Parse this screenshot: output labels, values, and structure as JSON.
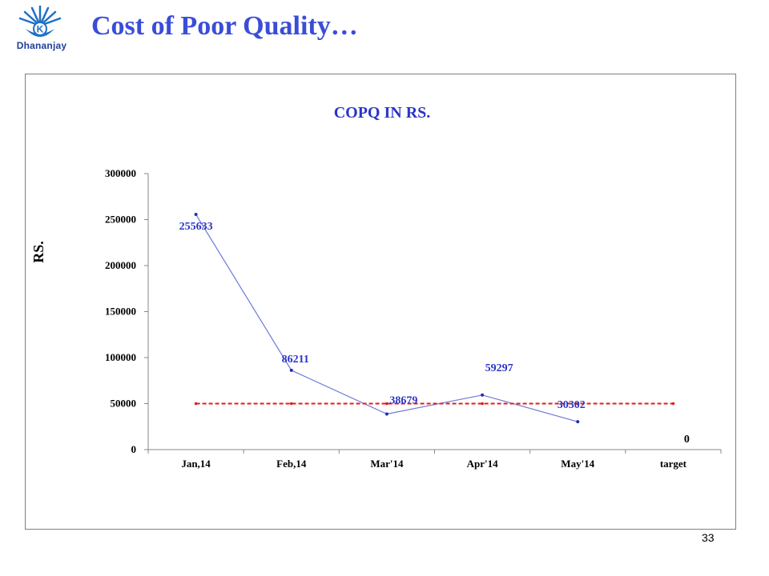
{
  "header": {
    "title": "Cost of Poor Quality…",
    "logo_text": "Dhananjay",
    "logo_letter": "K"
  },
  "footer": {
    "page_number": "33"
  },
  "chart_data": {
    "type": "line",
    "title": "COPQ IN RS.",
    "xlabel": "",
    "ylabel": "RS.",
    "categories": [
      "Jan,14",
      "Feb,14",
      "Mar'14",
      "Apr'14",
      "May'14",
      "target"
    ],
    "ylim": [
      0,
      300000
    ],
    "yticks": [
      0,
      50000,
      100000,
      150000,
      200000,
      250000,
      300000
    ],
    "grid": false,
    "series": [
      {
        "values": [
          255633,
          86211,
          38679,
          59297,
          30302,
          null
        ],
        "data_labels": [
          "255633",
          "86211",
          "38679",
          "59297",
          "30302",
          "0"
        ],
        "color": "#6c7bd8",
        "label_color": "#2b35c8"
      },
      {
        "values": [
          50000,
          50000,
          50000,
          50000,
          50000,
          50000
        ],
        "color": "#e01b1b",
        "line_style": "dashed"
      }
    ]
  }
}
